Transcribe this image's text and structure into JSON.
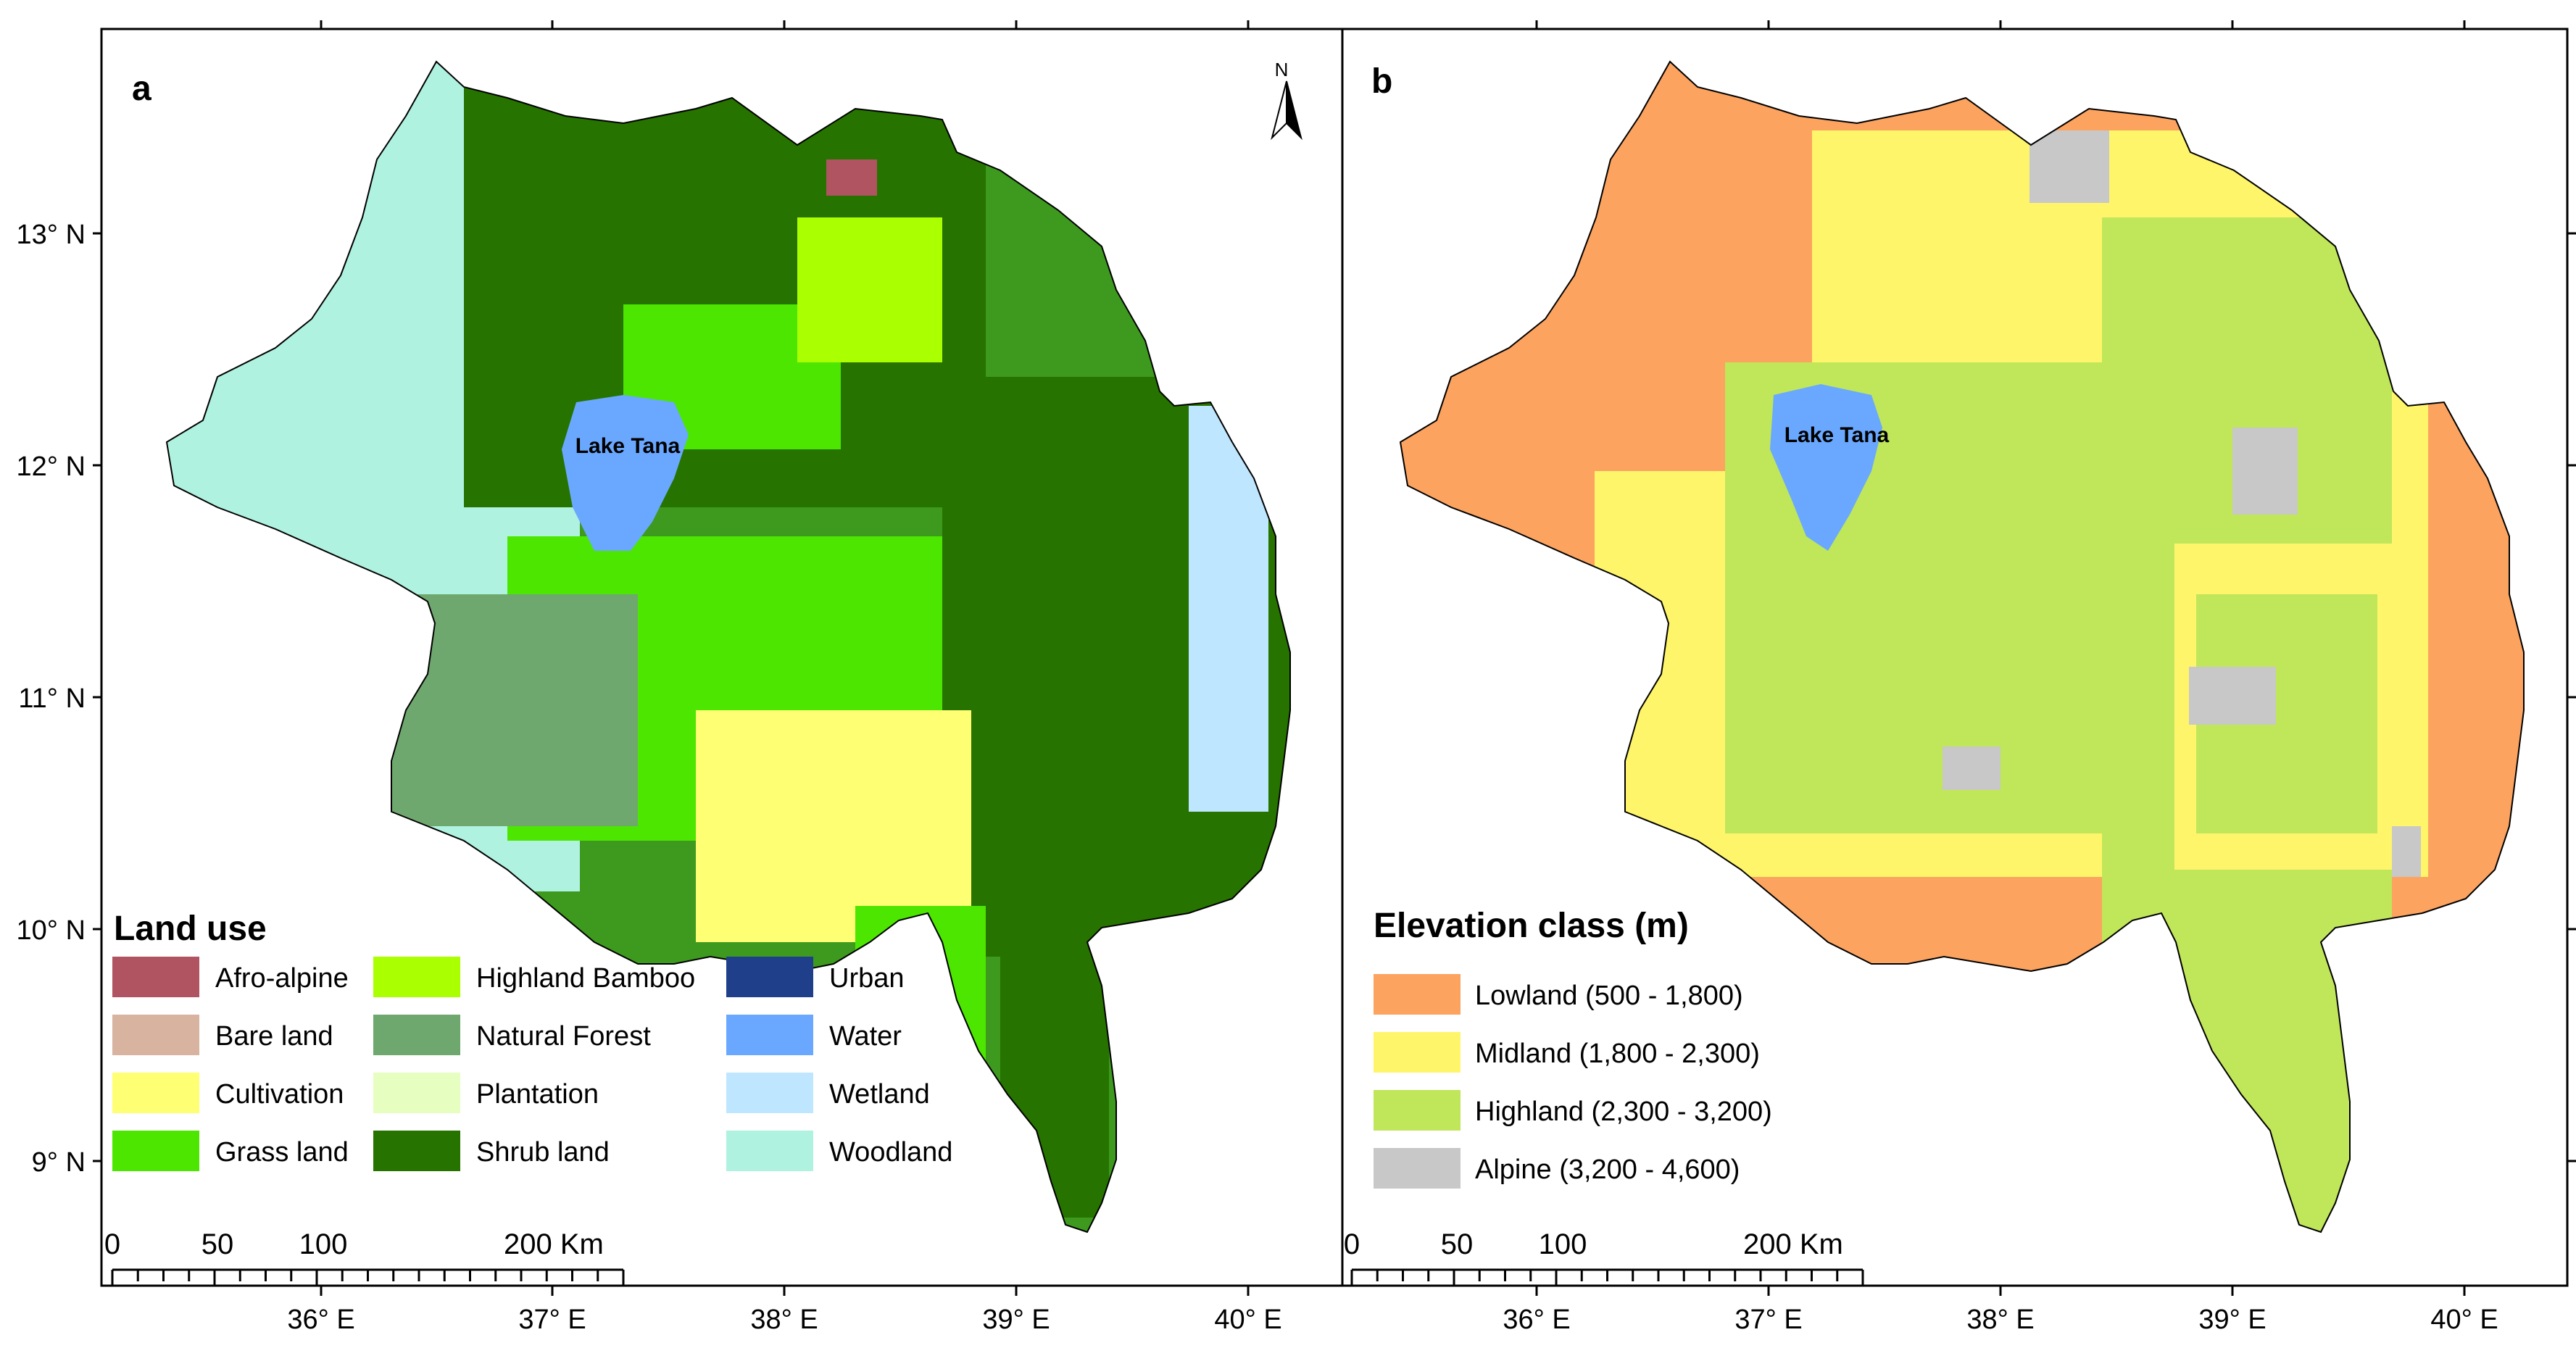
{
  "panels": [
    {
      "letter": "a",
      "legend_title": "Land use",
      "legend_items": [
        {
          "label": "Afro-alpine",
          "color": "#b05462"
        },
        {
          "label": "Highland Bamboo",
          "color": "#aaff00"
        },
        {
          "label": "Urban",
          "color": "#1f3f8a"
        },
        {
          "label": "Bare land",
          "color": "#d7b3a0"
        },
        {
          "label": "Natural Forest",
          "color": "#6fa86e"
        },
        {
          "label": "Water",
          "color": "#6aa8ff"
        },
        {
          "label": "Cultivation",
          "color": "#ffff73"
        },
        {
          "label": "Plantation",
          "color": "#e6ffc0"
        },
        {
          "label": "Wetland",
          "color": "#bfe6ff"
        },
        {
          "label": "Grass land",
          "color": "#4ce600"
        },
        {
          "label": "Shrub land",
          "color": "#267300"
        },
        {
          "label": "Woodland",
          "color": "#b0f2e0"
        }
      ],
      "lake_label": "Lake Tana",
      "north_label": "N",
      "scale_labels": [
        "0",
        "50",
        "100",
        "200 Km"
      ]
    },
    {
      "letter": "b",
      "legend_title": "Elevation class (m)",
      "legend_items": [
        {
          "label": "Lowland (500 - 1,800)",
          "color": "#fca360"
        },
        {
          "label": "Midland (1,800 - 2,300)",
          "color": "#fff56a"
        },
        {
          "label": "Highland (2,300 - 3,200)",
          "color": "#c0e65a"
        },
        {
          "label": "Alpine (3,200 - 4,600)",
          "color": "#c8c8c8"
        }
      ],
      "lake_label": "Lake Tana",
      "scale_labels": [
        "0",
        "50",
        "100",
        "200 Km"
      ]
    }
  ],
  "lat_labels": [
    "13° N",
    "12° N",
    "11° N",
    "10° N",
    "9° N"
  ],
  "lon_labels": [
    "36° E",
    "37° E",
    "38° E",
    "39° E",
    "40° E"
  ],
  "colors": {
    "water": "#6aa8ff",
    "frame": "#000000"
  }
}
